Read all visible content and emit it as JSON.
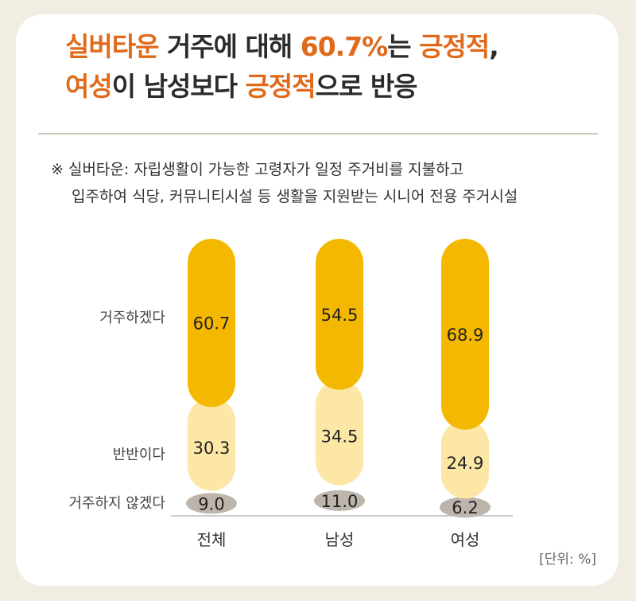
{
  "headline": {
    "line1": [
      {
        "text": "실버타운",
        "hl": true
      },
      {
        "text": " 거주에 대해 ",
        "hl": false
      },
      {
        "text": "60.7%",
        "hl": true
      },
      {
        "text": "는 ",
        "hl": false
      },
      {
        "text": "긍정적",
        "hl": true
      },
      {
        "text": ",",
        "hl": false
      }
    ],
    "line2": [
      {
        "text": "여성",
        "hl": true
      },
      {
        "text": "이 남성보다 ",
        "hl": false
      },
      {
        "text": "긍정적",
        "hl": true
      },
      {
        "text": "으로 반응",
        "hl": false
      }
    ]
  },
  "note": {
    "line1": "※ 실버타운: 자립생활이 가능한 고령자가 일정 주거비를 지불하고",
    "line2": "입주하여 식당, 커뮤니티시설 등 생활을 지원받는 시니어 전용 주거시설"
  },
  "unit": "[단위: %]",
  "colors": {
    "highlight": "#e06a1b",
    "positive": "#f5b800",
    "neutral": "#fde7a6",
    "negative": "#bdb5ab"
  },
  "chart_data": {
    "type": "bar",
    "stacked": true,
    "categories": [
      "전체",
      "남성",
      "여성"
    ],
    "series": [
      {
        "name": "거주하겠다",
        "values": [
          60.7,
          54.5,
          68.9
        ],
        "color": "#f5b800"
      },
      {
        "name": "반반이다",
        "values": [
          30.3,
          34.5,
          24.9
        ],
        "color": "#fde7a6"
      },
      {
        "name": "거주하지 않겠다",
        "values": [
          9.0,
          11.0,
          6.2
        ],
        "color": "#bdb5ab"
      }
    ],
    "value_labels": [
      [
        "60.7",
        "54.5",
        "68.9"
      ],
      [
        "30.3",
        "34.5",
        "24.9"
      ],
      [
        "9.0",
        "11.0",
        "6.2"
      ]
    ],
    "ylim": [
      0,
      100
    ],
    "legend": "left"
  }
}
